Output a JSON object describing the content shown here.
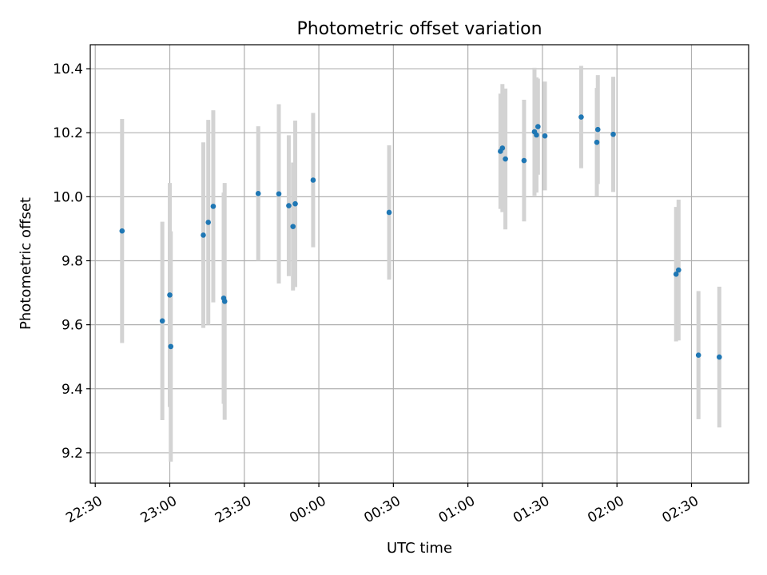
{
  "chart_data": {
    "type": "scatter",
    "title": "Photometric offset variation",
    "xlabel": "UTC time",
    "ylabel": "Photometric offset",
    "x_unit": "minutes after 22:30 UTC",
    "xlim": [
      -2,
      263
    ],
    "ylim": [
      9.105,
      10.475
    ],
    "x_ticks": [
      {
        "value": 0,
        "label": "22:30"
      },
      {
        "value": 30,
        "label": "23:00"
      },
      {
        "value": 60,
        "label": "23:30"
      },
      {
        "value": 90,
        "label": "00:00"
      },
      {
        "value": 120,
        "label": "00:30"
      },
      {
        "value": 150,
        "label": "01:00"
      },
      {
        "value": 180,
        "label": "01:30"
      },
      {
        "value": 210,
        "label": "02:00"
      },
      {
        "value": 240,
        "label": "02:30"
      }
    ],
    "y_ticks": [
      {
        "value": 9.2,
        "label": "9.2"
      },
      {
        "value": 9.4,
        "label": "9.4"
      },
      {
        "value": 9.6,
        "label": "9.6"
      },
      {
        "value": 9.8,
        "label": "9.8"
      },
      {
        "value": 10.0,
        "label": "10.0"
      },
      {
        "value": 10.2,
        "label": "10.2"
      },
      {
        "value": 10.4,
        "label": "10.4"
      }
    ],
    "grid": true,
    "colors": {
      "points": "#1f77b4",
      "errorbars": "#d3d3d3",
      "grid": "#b0b0b0"
    },
    "points": [
      {
        "x": 10.8,
        "y": 9.893,
        "err": 0.35
      },
      {
        "x": 27.0,
        "y": 9.612,
        "err": 0.31
      },
      {
        "x": 30.0,
        "y": 9.693,
        "err": 0.35
      },
      {
        "x": 30.4,
        "y": 9.532,
        "err": 0.36
      },
      {
        "x": 43.5,
        "y": 9.88,
        "err": 0.29
      },
      {
        "x": 45.5,
        "y": 9.92,
        "err": 0.32
      },
      {
        "x": 47.5,
        "y": 9.97,
        "err": 0.3
      },
      {
        "x": 51.7,
        "y": 9.683,
        "err": 0.33
      },
      {
        "x": 52.1,
        "y": 9.673,
        "err": 0.37
      },
      {
        "x": 65.6,
        "y": 10.01,
        "err": 0.21
      },
      {
        "x": 73.9,
        "y": 10.009,
        "err": 0.28
      },
      {
        "x": 77.9,
        "y": 9.972,
        "err": 0.22
      },
      {
        "x": 79.6,
        "y": 9.907,
        "err": 0.2
      },
      {
        "x": 80.5,
        "y": 9.978,
        "err": 0.26
      },
      {
        "x": 87.7,
        "y": 10.052,
        "err": 0.21
      },
      {
        "x": 118.3,
        "y": 9.951,
        "err": 0.21
      },
      {
        "x": 163.1,
        "y": 10.142,
        "err": 0.18
      },
      {
        "x": 163.9,
        "y": 10.152,
        "err": 0.2
      },
      {
        "x": 165.1,
        "y": 10.118,
        "err": 0.22
      },
      {
        "x": 172.6,
        "y": 10.113,
        "err": 0.19
      },
      {
        "x": 176.8,
        "y": 10.203,
        "err": 0.2
      },
      {
        "x": 177.6,
        "y": 10.193,
        "err": 0.18
      },
      {
        "x": 178.2,
        "y": 10.219,
        "err": 0.15
      },
      {
        "x": 181.0,
        "y": 10.19,
        "err": 0.17
      },
      {
        "x": 195.6,
        "y": 10.249,
        "err": 0.16
      },
      {
        "x": 201.9,
        "y": 10.17,
        "err": 0.17
      },
      {
        "x": 202.3,
        "y": 10.21,
        "err": 0.17
      },
      {
        "x": 208.5,
        "y": 10.195,
        "err": 0.18
      },
      {
        "x": 233.8,
        "y": 9.758,
        "err": 0.21
      },
      {
        "x": 234.8,
        "y": 9.771,
        "err": 0.22
      },
      {
        "x": 242.8,
        "y": 9.505,
        "err": 0.2
      },
      {
        "x": 251.2,
        "y": 9.499,
        "err": 0.22
      }
    ]
  }
}
